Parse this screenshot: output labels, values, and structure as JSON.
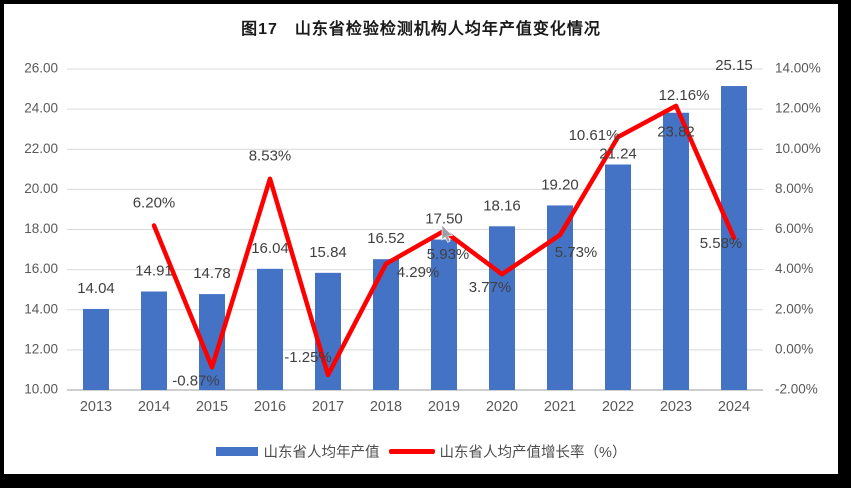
{
  "title": "图17　山东省检验检测机构人均年产值变化情况",
  "legend": {
    "bar_label": "山东省人均年产值",
    "line_label": "山东省人均产值增长率（%）"
  },
  "chart_data": {
    "type": "combo-bar-line",
    "title": "图17　山东省检验检测机构人均年产值变化情况",
    "categories": [
      "2013",
      "2014",
      "2015",
      "2016",
      "2017",
      "2018",
      "2019",
      "2020",
      "2021",
      "2022",
      "2023",
      "2024"
    ],
    "series": [
      {
        "name": "山东省人均年产值",
        "type": "bar",
        "axis": "left",
        "color": "#4472C4",
        "values": [
          14.04,
          14.91,
          14.78,
          16.04,
          15.84,
          16.52,
          17.5,
          18.16,
          19.2,
          21.24,
          23.82,
          25.15
        ],
        "labels": [
          "14.04",
          "14.91",
          "14.78",
          "16.04",
          "15.84",
          "16.52",
          "17.50",
          "18.16",
          "19.20",
          "21.24",
          "23.82",
          "25.15"
        ]
      },
      {
        "name": "山东省人均产值增长率（%）",
        "type": "line",
        "axis": "right",
        "color": "#FF0000",
        "values": [
          null,
          6.2,
          -0.87,
          8.53,
          -1.25,
          4.29,
          5.93,
          3.77,
          5.73,
          10.61,
          12.16,
          5.58
        ],
        "labels": [
          null,
          "6.20%",
          "-0.87%",
          "8.53%",
          "-1.25%",
          "4.29%",
          "5.93%",
          "3.77%",
          "5.73%",
          "10.61%",
          "12.16%",
          "5.58%"
        ]
      }
    ],
    "left_axis": {
      "min": 10,
      "max": 26,
      "step": 2,
      "tick_labels": [
        "10.00",
        "12.00",
        "14.00",
        "16.00",
        "18.00",
        "20.00",
        "22.00",
        "24.00",
        "26.00"
      ]
    },
    "right_axis": {
      "min": -2,
      "max": 14,
      "step": 2,
      "tick_labels": [
        "-2.00%",
        "0.00%",
        "2.00%",
        "4.00%",
        "6.00%",
        "8.00%",
        "10.00%",
        "12.00%",
        "14.00%"
      ]
    },
    "gridlines": true,
    "legend_position": "bottom",
    "colors": {
      "grid": "#D9D9D9",
      "baseline": "#BFBFBF",
      "axis_text": "#595959",
      "data_label": "#404040",
      "title": "#1A1A1A",
      "background": "#FFFFFF",
      "page": "#000000"
    }
  }
}
